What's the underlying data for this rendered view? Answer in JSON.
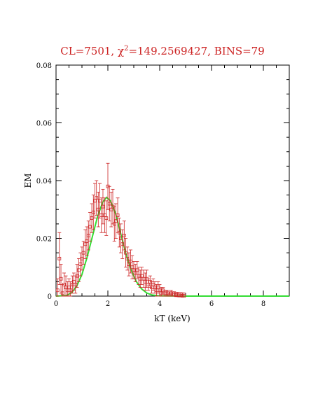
{
  "chart_data": {
    "type": "scatter",
    "title_parts": {
      "prefix": "CL=7501, ",
      "chi": "χ",
      "sup": "2",
      "suffix": "=149.2569427, BINS=79"
    },
    "xlabel": "kT (keV)",
    "ylabel": "EM",
    "xlim": [
      0,
      9
    ],
    "ylim": [
      0,
      0.08
    ],
    "xticks": [
      0,
      2,
      4,
      6,
      8
    ],
    "yticks": [
      0,
      0.02,
      0.04,
      0.06,
      0.08
    ],
    "ytick_labels": [
      "0",
      "0.02",
      "0.04",
      "0.06",
      "0.08"
    ],
    "grid": false,
    "colors": {
      "data": "#cc2222",
      "model": "#33dd33",
      "title": "#cc2222",
      "axes": "#000000"
    },
    "series": [
      {
        "type": "scatter",
        "x": [
          0.06,
          0.13,
          0.19,
          0.25,
          0.31,
          0.38,
          0.44,
          0.5,
          0.56,
          0.63,
          0.69,
          0.75,
          0.81,
          0.88,
          0.94,
          1.0,
          1.06,
          1.13,
          1.19,
          1.25,
          1.31,
          1.38,
          1.44,
          1.5,
          1.56,
          1.63,
          1.69,
          1.75,
          1.81,
          1.88,
          1.94,
          2.0,
          2.06,
          2.13,
          2.19,
          2.25,
          2.31,
          2.38,
          2.44,
          2.5,
          2.56,
          2.63,
          2.69,
          2.75,
          2.81,
          2.88,
          2.94,
          3.0,
          3.06,
          3.13,
          3.19,
          3.25,
          3.31,
          3.38,
          3.44,
          3.5,
          3.56,
          3.63,
          3.69,
          3.75,
          3.81,
          3.88,
          3.94,
          4.0,
          4.06,
          4.13,
          4.19,
          4.25,
          4.31,
          4.38,
          4.44,
          4.5,
          4.56,
          4.63,
          4.69,
          4.75,
          4.81,
          4.88,
          4.94
        ],
        "y": [
          0.002,
          0.013,
          0.006,
          0.001,
          0.004,
          0.003,
          0.002,
          0.003,
          0.002,
          0.004,
          0.005,
          0.004,
          0.007,
          0.009,
          0.011,
          0.013,
          0.015,
          0.018,
          0.019,
          0.021,
          0.024,
          0.027,
          0.029,
          0.033,
          0.034,
          0.03,
          0.033,
          0.028,
          0.031,
          0.028,
          0.027,
          0.038,
          0.032,
          0.03,
          0.031,
          0.025,
          0.026,
          0.028,
          0.022,
          0.02,
          0.018,
          0.021,
          0.015,
          0.013,
          0.011,
          0.012,
          0.01,
          0.009,
          0.008,
          0.009,
          0.007,
          0.006,
          0.007,
          0.006,
          0.005,
          0.006,
          0.004,
          0.005,
          0.003,
          0.004,
          0.003,
          0.002,
          0.003,
          0.002,
          0.001,
          0.002,
          0.001,
          0.001,
          0.001,
          0.0005,
          0.001,
          0.0005,
          0.0005,
          0.0003,
          0.0003,
          0.0002,
          0.0002,
          0.0001,
          0.0001
        ],
        "err": [
          0.004,
          0.009,
          0.005,
          0.003,
          0.004,
          0.004,
          0.003,
          0.003,
          0.003,
          0.003,
          0.003,
          0.003,
          0.004,
          0.004,
          0.004,
          0.004,
          0.004,
          0.005,
          0.005,
          0.005,
          0.005,
          0.005,
          0.006,
          0.006,
          0.006,
          0.006,
          0.006,
          0.006,
          0.006,
          0.006,
          0.006,
          0.008,
          0.006,
          0.006,
          0.006,
          0.006,
          0.006,
          0.006,
          0.005,
          0.005,
          0.005,
          0.005,
          0.005,
          0.004,
          0.004,
          0.004,
          0.004,
          0.003,
          0.003,
          0.003,
          0.003,
          0.003,
          0.003,
          0.003,
          0.003,
          0.003,
          0.002,
          0.002,
          0.002,
          0.002,
          0.002,
          0.002,
          0.002,
          0.002,
          0.002,
          0.001,
          0.001,
          0.001,
          0.001,
          0.001,
          0.001,
          0.001,
          0.001,
          0.001,
          0.001,
          0.001,
          0.001,
          0.001,
          0.001
        ]
      },
      {
        "type": "line",
        "x": [
          0,
          0.4,
          0.6,
          0.8,
          1.0,
          1.2,
          1.4,
          1.6,
          1.8,
          1.95,
          2.1,
          2.3,
          2.5,
          2.7,
          2.9,
          3.1,
          3.3,
          3.5,
          3.7,
          4.0,
          5,
          6,
          7,
          8,
          9
        ],
        "y": [
          0,
          0.0002,
          0.0012,
          0.0035,
          0.0075,
          0.0135,
          0.0205,
          0.0275,
          0.0325,
          0.0342,
          0.033,
          0.0285,
          0.0215,
          0.0145,
          0.009,
          0.005,
          0.0025,
          0.0011,
          0.0004,
          0.0001,
          0,
          0,
          0,
          0,
          0
        ]
      }
    ]
  }
}
